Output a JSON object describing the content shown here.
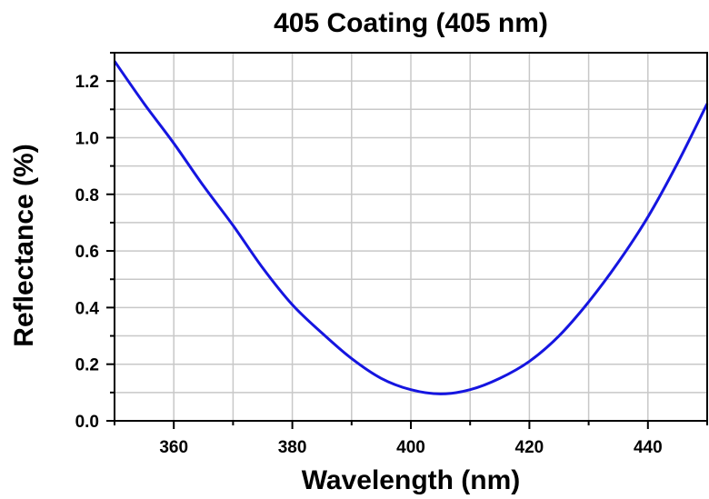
{
  "chart_data": {
    "type": "line",
    "title": "405 Coating (405 nm)",
    "xlabel": "Wavelength (nm)",
    "ylabel": "Reflectance (%)",
    "xlim": [
      350,
      450
    ],
    "ylim": [
      0.0,
      1.3
    ],
    "grid": true,
    "x_ticks": [
      360,
      380,
      400,
      420,
      440
    ],
    "x_tick_labels": [
      "360",
      "380",
      "400",
      "420",
      "440"
    ],
    "y_ticks": [
      0.0,
      0.2,
      0.4,
      0.6,
      0.8,
      1.0,
      1.2
    ],
    "y_tick_labels": [
      "0.0",
      "0.2",
      "0.4",
      "0.6",
      "0.8",
      "1.0",
      "1.2"
    ],
    "series": [
      {
        "color": "#1515e0",
        "x": [
          350,
          355,
          360,
          365,
          370,
          375,
          380,
          385,
          390,
          395,
          400,
          405,
          410,
          415,
          420,
          425,
          430,
          435,
          440,
          445,
          450
        ],
        "y": [
          1.27,
          1.12,
          0.98,
          0.83,
          0.69,
          0.54,
          0.41,
          0.31,
          0.22,
          0.15,
          0.11,
          0.095,
          0.11,
          0.15,
          0.21,
          0.3,
          0.42,
          0.56,
          0.72,
          0.91,
          1.12
        ]
      }
    ]
  }
}
